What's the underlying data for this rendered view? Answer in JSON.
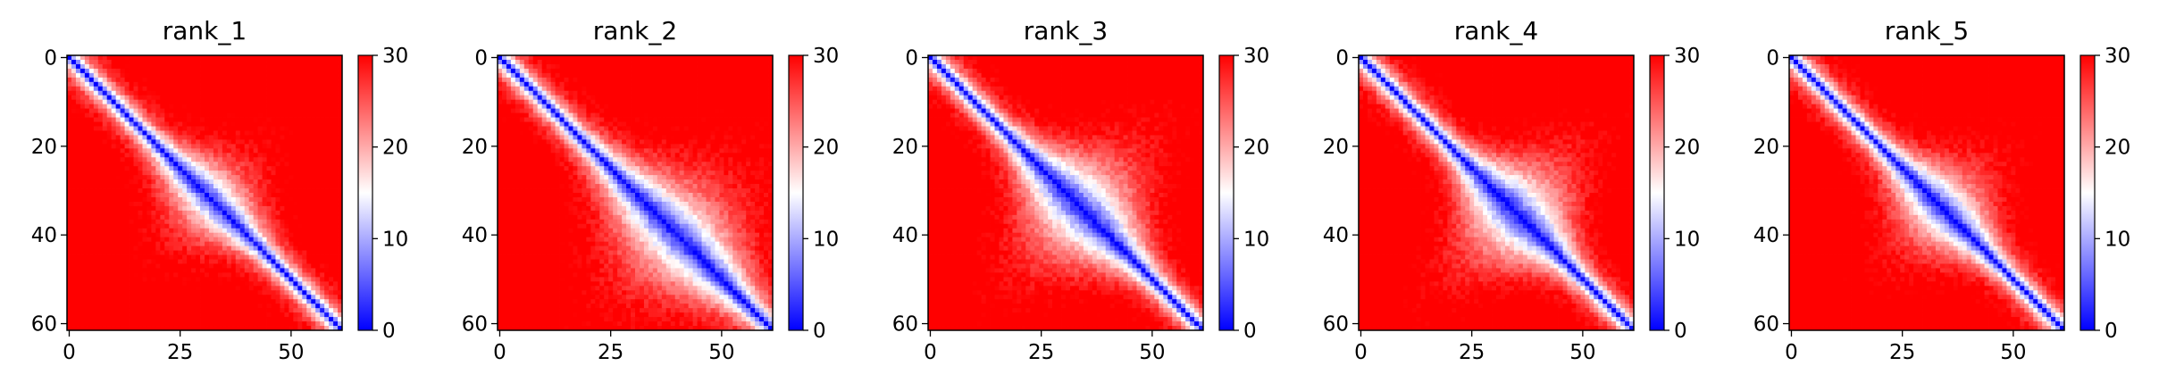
{
  "figure": {
    "colormap": [
      "#0000ff",
      "#ffffff",
      "#ff0000"
    ]
  },
  "chart_data": [
    {
      "type": "heatmap",
      "title": "rank_1",
      "matrix_size": 62,
      "xticks": [
        0,
        25,
        50
      ],
      "yticks": [
        0,
        20,
        40,
        60
      ],
      "colorbar": {
        "range": [
          0,
          30
        ],
        "ticks": [
          0,
          10,
          20,
          30
        ]
      },
      "bulge": {
        "center": 32,
        "amplitude": 5,
        "width": 6
      }
    },
    {
      "type": "heatmap",
      "title": "rank_2",
      "matrix_size": 62,
      "xticks": [
        0,
        25,
        50
      ],
      "yticks": [
        0,
        20,
        40,
        60
      ],
      "colorbar": {
        "range": [
          0,
          30
        ],
        "ticks": [
          0,
          10,
          20,
          30
        ]
      },
      "bulge": {
        "center": 40,
        "amplitude": 8,
        "width": 9
      }
    },
    {
      "type": "heatmap",
      "title": "rank_3",
      "matrix_size": 62,
      "xticks": [
        0,
        25,
        50
      ],
      "yticks": [
        0,
        20,
        40,
        60
      ],
      "colorbar": {
        "range": [
          0,
          30
        ],
        "ticks": [
          0,
          10,
          20,
          30
        ]
      },
      "bulge": {
        "center": 34,
        "amplitude": 9,
        "width": 7
      }
    },
    {
      "type": "heatmap",
      "title": "rank_4",
      "matrix_size": 62,
      "xticks": [
        0,
        25,
        50
      ],
      "yticks": [
        0,
        20,
        40,
        60
      ],
      "colorbar": {
        "range": [
          0,
          30
        ],
        "ticks": [
          0,
          10,
          20,
          30
        ]
      },
      "bulge": {
        "center": 35,
        "amplitude": 9,
        "width": 6
      }
    },
    {
      "type": "heatmap",
      "title": "rank_5",
      "matrix_size": 62,
      "xticks": [
        0,
        25,
        50
      ],
      "yticks": [
        0,
        20,
        40,
        60
      ],
      "colorbar": {
        "range": [
          0,
          30
        ],
        "ticks": [
          0,
          10,
          20,
          30
        ]
      },
      "bulge": {
        "center": 34,
        "amplitude": 6,
        "width": 6
      }
    }
  ]
}
